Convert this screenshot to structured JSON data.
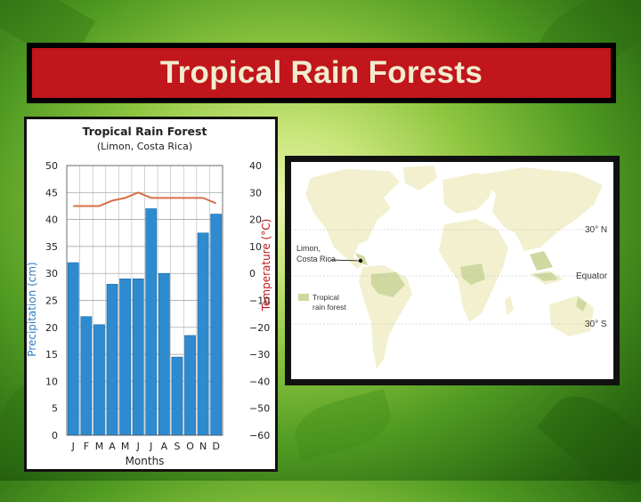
{
  "slide": {
    "title": "Tropical Rain Forests"
  },
  "chart_data": {
    "type": "bar",
    "title": "Tropical Rain Forest",
    "subtitle": "(Limon, Costa Rica)",
    "xlabel": "Months",
    "ylabel": "Precipitation (cm)",
    "y2label": "Temperature (°C)",
    "categories": [
      "J",
      "F",
      "M",
      "A",
      "M",
      "J",
      "J",
      "A",
      "S",
      "O",
      "N",
      "D"
    ],
    "ylim": [
      0,
      50
    ],
    "y2lim": [
      -60,
      40
    ],
    "yticks": [
      "0",
      "5",
      "10",
      "15",
      "20",
      "25",
      "30",
      "35",
      "40",
      "45",
      "50"
    ],
    "y2ticks": [
      "−60",
      "−50",
      "−40",
      "−30",
      "−20",
      "−10",
      "0",
      "10",
      "20",
      "30",
      "40"
    ],
    "grid": true,
    "series": [
      {
        "kind": "bar",
        "axis": "left",
        "values": [
          32,
          22,
          20.5,
          28,
          29,
          29,
          42,
          30,
          14.5,
          18.5,
          37.5,
          41
        ],
        "color": "#2e8bd0"
      },
      {
        "kind": "line",
        "axis": "right",
        "values": [
          25,
          25,
          25,
          27,
          28,
          30,
          28,
          28,
          28,
          28,
          28,
          26
        ],
        "color": "#d8704a"
      }
    ]
  },
  "map": {
    "latitude_labels": [
      "30° N",
      "Equator",
      "30° S"
    ],
    "location_label_line1": "Limon,",
    "location_label_line2": "Costa Rica",
    "legend_label_line1": "Tropical",
    "legend_label_line2": "rain forest",
    "land_color": "#f2f0cf",
    "rainforest_color": "#cfd8a0"
  }
}
